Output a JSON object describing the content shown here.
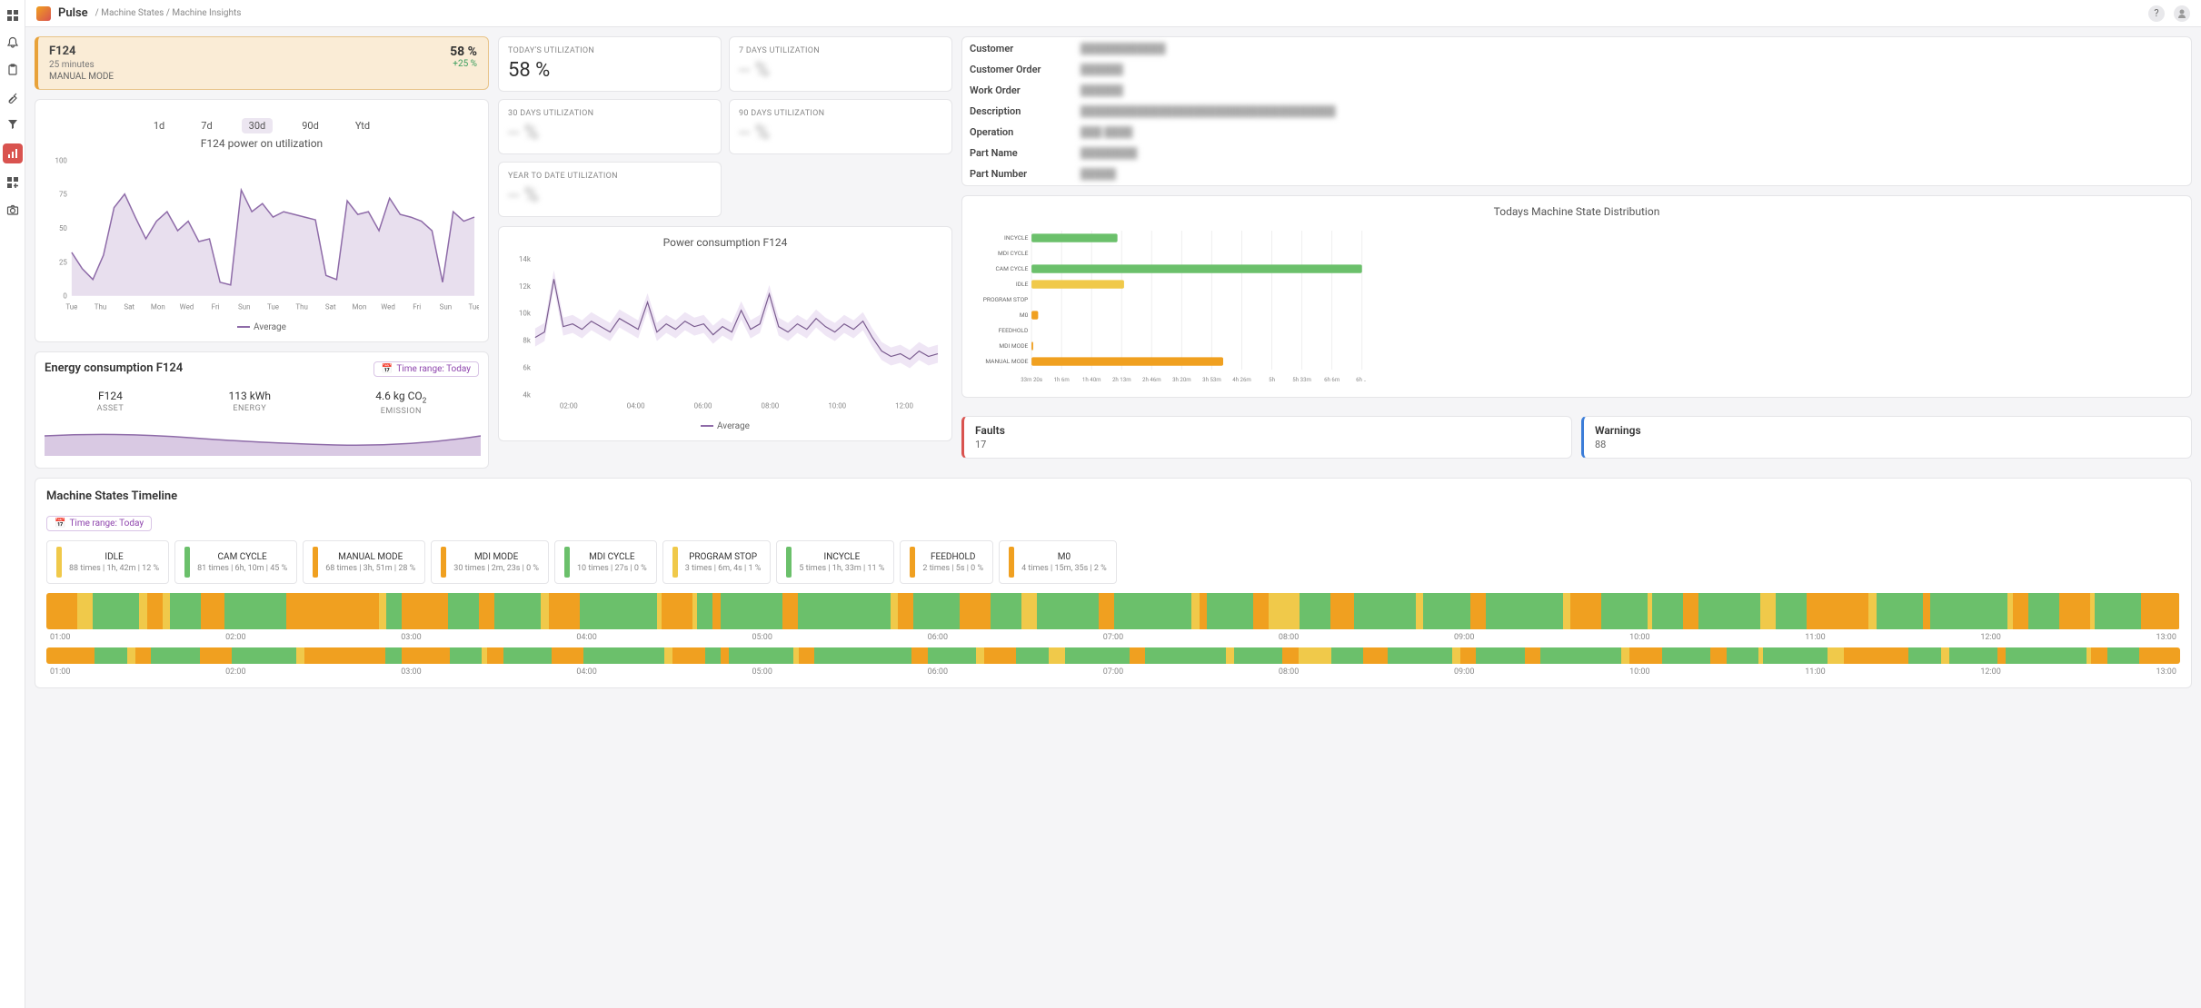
{
  "brand": "Pulse",
  "breadcrumb": [
    "Machine States",
    "Machine Insights"
  ],
  "machine": {
    "name": "F124",
    "subtitle": "25 minutes",
    "mode": "MANUAL MODE",
    "percent": "58 %",
    "delta": "+25 %"
  },
  "range_tabs": [
    "1d",
    "7d",
    "30d",
    "90d",
    "Ytd"
  ],
  "range_active": "30d",
  "utilization_chart": {
    "title": "F124 power on utilization",
    "legend": "Average",
    "ylim": [
      0,
      100
    ],
    "yticks": [
      0,
      25,
      50,
      75,
      100
    ],
    "xlabels": [
      "Tue",
      "Thu",
      "Sat",
      "Mon",
      "Wed",
      "Fri",
      "Sun",
      "Tue",
      "Thu",
      "Sat",
      "Mon",
      "Wed",
      "Fri",
      "Sun",
      "Tue"
    ],
    "values": [
      32,
      20,
      12,
      30,
      65,
      75,
      58,
      42,
      55,
      62,
      48,
      55,
      40,
      42,
      10,
      8,
      78,
      62,
      68,
      58,
      62,
      60,
      58,
      56,
      15,
      12,
      70,
      60,
      62,
      48,
      72,
      60,
      58,
      55,
      48,
      10,
      62,
      55,
      58
    ],
    "line_color": "#8e6ba8",
    "fill_color": "#d9c9e3",
    "bg": "#ffffff"
  },
  "energy": {
    "title": "Energy consumption F124",
    "time_range_label": "Time range: Today",
    "metrics": [
      {
        "val": "F124",
        "lbl": "ASSET"
      },
      {
        "val": "113 kWh",
        "lbl": "ENERGY"
      },
      {
        "val_html": "4.6 kg CO",
        "sub": "2",
        "lbl": "EMISSION"
      }
    ],
    "wave_color": "#b89acc"
  },
  "util_cards": [
    {
      "lbl": "TODAY'S UTILIZATION",
      "val": "58 %",
      "blur": false
    },
    {
      "lbl": "7 DAYS UTILIZATION",
      "val": "-- %",
      "blur": true
    },
    {
      "lbl": "30 DAYS UTILIZATION",
      "val": "-- %",
      "blur": true
    },
    {
      "lbl": "90 DAYS UTILIZATION",
      "val": "-- %",
      "blur": true
    },
    {
      "lbl": "YEAR TO DATE UTILIZATION",
      "val": "-- %",
      "blur": true
    }
  ],
  "power_chart": {
    "title": "Power consumption F124",
    "legend": "Average",
    "ylim": [
      4000,
      14000
    ],
    "yticks": [
      "4k",
      "6k",
      "8k",
      "10k",
      "12k",
      "14k"
    ],
    "xlabels": [
      "02:00",
      "04:00",
      "06:00",
      "08:00",
      "10:00",
      "12:00"
    ],
    "line_color": "#7a5c8f",
    "band_color": "#e4d6ee",
    "values": [
      8200,
      8600,
      12500,
      9000,
      9200,
      8800,
      9400,
      9000,
      8600,
      9600,
      9200,
      8800,
      10800,
      8600,
      9200,
      8800,
      9400,
      9000,
      9200,
      8400,
      9000,
      8600,
      10200,
      8800,
      9200,
      11400,
      9000,
      8600,
      9200,
      8800,
      9600,
      9000,
      8600,
      9200,
      8800,
      9400,
      8200,
      7200,
      6800,
      7000,
      6600,
      7200,
      6800,
      7000
    ]
  },
  "info": [
    {
      "k": "Customer",
      "v": "████████████"
    },
    {
      "k": "Customer Order",
      "v": "██████"
    },
    {
      "k": "Work Order",
      "v": "██████"
    },
    {
      "k": "Description",
      "v": "████████████████████████████████████"
    },
    {
      "k": "Operation",
      "v": "███ ████"
    },
    {
      "k": "Part Name",
      "v": "████████"
    },
    {
      "k": "Part Number",
      "v": "█████"
    }
  ],
  "distribution": {
    "title": "Todays Machine State Distribution",
    "categories": [
      "INCYCLE",
      "MDI CYCLE",
      "CAM CYCLE",
      "IDLE",
      "PROGRAM STOP",
      "M0",
      "FEEDHOLD",
      "MDI MODE",
      "MANUAL MODE"
    ],
    "values": [
      26,
      0,
      100,
      28,
      0,
      2,
      0,
      0.5,
      58
    ],
    "colors": [
      "#6bc06b",
      "#6bc06b",
      "#6bc06b",
      "#f0c94a",
      "#f0c94a",
      "#f0a020",
      "#f0a020",
      "#f0a020",
      "#f0a020"
    ],
    "xlabels": [
      "33m 20s",
      "1h 6m",
      "1h 40m",
      "2h 13m",
      "2h 46m",
      "3h 20m",
      "3h 53m",
      "4h 26m",
      "5h",
      "5h 33m",
      "6h 6m",
      "6h ..."
    ]
  },
  "faults": {
    "label": "Faults",
    "count": "17"
  },
  "warnings": {
    "label": "Warnings",
    "count": "88"
  },
  "timeline": {
    "title": "Machine States Timeline",
    "time_range_label": "Time range: Today",
    "states": [
      {
        "name": "IDLE",
        "color": "#f0c94a",
        "stats": "88 times | 1h, 42m | 12 %"
      },
      {
        "name": "CAM CYCLE",
        "color": "#6bc06b",
        "stats": "81 times | 6h, 10m | 45 %"
      },
      {
        "name": "MANUAL MODE",
        "color": "#f0a020",
        "stats": "68 times | 3h, 51m | 28 %"
      },
      {
        "name": "MDI MODE",
        "color": "#f0a020",
        "stats": "30 times | 2m, 23s | 0 %"
      },
      {
        "name": "MDI CYCLE",
        "color": "#6bc06b",
        "stats": "10 times | 27s | 0 %"
      },
      {
        "name": "PROGRAM STOP",
        "color": "#f0c94a",
        "stats": "3 times | 6m, 4s | 1 %"
      },
      {
        "name": "INCYCLE",
        "color": "#6bc06b",
        "stats": "5 times | 1h, 33m | 11 %"
      },
      {
        "name": "FEEDHOLD",
        "color": "#f0a020",
        "stats": "2 times | 5s | 0 %"
      },
      {
        "name": "M0",
        "color": "#f0a020",
        "stats": "4 times | 15m, 35s | 2 %"
      }
    ],
    "xlabels": [
      "01:00",
      "02:00",
      "03:00",
      "04:00",
      "05:00",
      "06:00",
      "07:00",
      "08:00",
      "09:00",
      "10:00",
      "11:00",
      "12:00",
      "13:00"
    ],
    "segments1": [
      {
        "c": "#f0a020",
        "w": 2
      },
      {
        "c": "#f0c94a",
        "w": 1
      },
      {
        "c": "#6bc06b",
        "w": 3
      },
      {
        "c": "#f0c94a",
        "w": 0.5
      },
      {
        "c": "#f0a020",
        "w": 1
      },
      {
        "c": "#f0c94a",
        "w": 0.5
      },
      {
        "c": "#6bc06b",
        "w": 2
      },
      {
        "c": "#f0a020",
        "w": 1.5
      },
      {
        "c": "#6bc06b",
        "w": 4
      },
      {
        "c": "#f0a020",
        "w": 6
      },
      {
        "c": "#f0c94a",
        "w": 0.5
      },
      {
        "c": "#6bc06b",
        "w": 1
      },
      {
        "c": "#f0a020",
        "w": 3
      },
      {
        "c": "#6bc06b",
        "w": 2
      },
      {
        "c": "#f0a020",
        "w": 1
      },
      {
        "c": "#6bc06b",
        "w": 3
      },
      {
        "c": "#f0c94a",
        "w": 0.5
      },
      {
        "c": "#f0a020",
        "w": 2
      },
      {
        "c": "#6bc06b",
        "w": 5
      },
      {
        "c": "#f0c94a",
        "w": 0.3
      },
      {
        "c": "#f0a020",
        "w": 2
      },
      {
        "c": "#f0c94a",
        "w": 0.3
      },
      {
        "c": "#6bc06b",
        "w": 1
      },
      {
        "c": "#f0a020",
        "w": 0.5
      },
      {
        "c": "#6bc06b",
        "w": 4
      },
      {
        "c": "#f0a020",
        "w": 1
      },
      {
        "c": "#6bc06b",
        "w": 6
      },
      {
        "c": "#f0c94a",
        "w": 0.5
      },
      {
        "c": "#f0a020",
        "w": 1
      },
      {
        "c": "#6bc06b",
        "w": 3
      },
      {
        "c": "#f0a020",
        "w": 2
      },
      {
        "c": "#6bc06b",
        "w": 2
      },
      {
        "c": "#f0c94a",
        "w": 1
      },
      {
        "c": "#6bc06b",
        "w": 4
      },
      {
        "c": "#f0a020",
        "w": 1
      },
      {
        "c": "#6bc06b",
        "w": 5
      },
      {
        "c": "#f0c94a",
        "w": 0.5
      },
      {
        "c": "#f0a020",
        "w": 0.5
      },
      {
        "c": "#6bc06b",
        "w": 3
      },
      {
        "c": "#f0a020",
        "w": 1
      },
      {
        "c": "#f0c94a",
        "w": 2
      },
      {
        "c": "#6bc06b",
        "w": 2
      },
      {
        "c": "#f0a020",
        "w": 1.5
      },
      {
        "c": "#6bc06b",
        "w": 4
      },
      {
        "c": "#f0c94a",
        "w": 0.5
      },
      {
        "c": "#6bc06b",
        "w": 3
      },
      {
        "c": "#f0a020",
        "w": 1
      },
      {
        "c": "#6bc06b",
        "w": 5
      },
      {
        "c": "#f0c94a",
        "w": 0.5
      },
      {
        "c": "#f0a020",
        "w": 2
      },
      {
        "c": "#6bc06b",
        "w": 3
      },
      {
        "c": "#f0c94a",
        "w": 0.3
      },
      {
        "c": "#6bc06b",
        "w": 2
      },
      {
        "c": "#f0a020",
        "w": 1
      },
      {
        "c": "#6bc06b",
        "w": 4
      },
      {
        "c": "#f0c94a",
        "w": 1
      },
      {
        "c": "#6bc06b",
        "w": 2
      },
      {
        "c": "#f0a020",
        "w": 4
      },
      {
        "c": "#f0c94a",
        "w": 0.5
      },
      {
        "c": "#6bc06b",
        "w": 3
      },
      {
        "c": "#f0a020",
        "w": 0.5
      },
      {
        "c": "#6bc06b",
        "w": 5
      },
      {
        "c": "#f0c94a",
        "w": 0.3
      },
      {
        "c": "#f0a020",
        "w": 1
      },
      {
        "c": "#6bc06b",
        "w": 2
      },
      {
        "c": "#f0a020",
        "w": 2
      },
      {
        "c": "#f0c94a",
        "w": 0.3
      },
      {
        "c": "#6bc06b",
        "w": 3
      },
      {
        "c": "#f0a020",
        "w": 2.5
      }
    ],
    "segments2": [
      {
        "c": "#f0a020",
        "w": 3
      },
      {
        "c": "#6bc06b",
        "w": 2
      },
      {
        "c": "#f0c94a",
        "w": 0.5
      },
      {
        "c": "#f0a020",
        "w": 1
      },
      {
        "c": "#6bc06b",
        "w": 3
      },
      {
        "c": "#f0a020",
        "w": 2
      },
      {
        "c": "#6bc06b",
        "w": 4
      },
      {
        "c": "#f0c94a",
        "w": 0.5
      },
      {
        "c": "#f0a020",
        "w": 5
      },
      {
        "c": "#6bc06b",
        "w": 1
      },
      {
        "c": "#f0a020",
        "w": 3
      },
      {
        "c": "#6bc06b",
        "w": 2
      },
      {
        "c": "#f0c94a",
        "w": 0.3
      },
      {
        "c": "#f0a020",
        "w": 1
      },
      {
        "c": "#6bc06b",
        "w": 3
      },
      {
        "c": "#f0a020",
        "w": 2
      },
      {
        "c": "#6bc06b",
        "w": 5
      },
      {
        "c": "#f0c94a",
        "w": 0.5
      },
      {
        "c": "#f0a020",
        "w": 2
      },
      {
        "c": "#6bc06b",
        "w": 1
      },
      {
        "c": "#f0a020",
        "w": 0.5
      },
      {
        "c": "#6bc06b",
        "w": 4
      },
      {
        "c": "#f0c94a",
        "w": 0.3
      },
      {
        "c": "#f0a020",
        "w": 1
      },
      {
        "c": "#6bc06b",
        "w": 6
      },
      {
        "c": "#f0a020",
        "w": 1
      },
      {
        "c": "#6bc06b",
        "w": 3
      },
      {
        "c": "#f0c94a",
        "w": 0.5
      },
      {
        "c": "#f0a020",
        "w": 2
      },
      {
        "c": "#6bc06b",
        "w": 2
      },
      {
        "c": "#f0c94a",
        "w": 1
      },
      {
        "c": "#6bc06b",
        "w": 4
      },
      {
        "c": "#f0a020",
        "w": 1
      },
      {
        "c": "#6bc06b",
        "w": 5
      },
      {
        "c": "#f0c94a",
        "w": 0.5
      },
      {
        "c": "#6bc06b",
        "w": 3
      },
      {
        "c": "#f0a020",
        "w": 1
      },
      {
        "c": "#f0c94a",
        "w": 2
      },
      {
        "c": "#6bc06b",
        "w": 2
      },
      {
        "c": "#f0a020",
        "w": 1.5
      },
      {
        "c": "#6bc06b",
        "w": 4
      },
      {
        "c": "#f0c94a",
        "w": 0.5
      },
      {
        "c": "#f0a020",
        "w": 1
      },
      {
        "c": "#6bc06b",
        "w": 3
      },
      {
        "c": "#f0a020",
        "w": 1
      },
      {
        "c": "#6bc06b",
        "w": 5
      },
      {
        "c": "#f0c94a",
        "w": 0.5
      },
      {
        "c": "#f0a020",
        "w": 2
      },
      {
        "c": "#6bc06b",
        "w": 3
      },
      {
        "c": "#f0a020",
        "w": 1
      },
      {
        "c": "#6bc06b",
        "w": 2
      },
      {
        "c": "#f0c94a",
        "w": 0.3
      },
      {
        "c": "#6bc06b",
        "w": 4
      },
      {
        "c": "#f0c94a",
        "w": 1
      },
      {
        "c": "#f0a020",
        "w": 4
      },
      {
        "c": "#6bc06b",
        "w": 2
      },
      {
        "c": "#f0c94a",
        "w": 0.5
      },
      {
        "c": "#6bc06b",
        "w": 3
      },
      {
        "c": "#f0a020",
        "w": 0.5
      },
      {
        "c": "#6bc06b",
        "w": 5
      },
      {
        "c": "#f0c94a",
        "w": 0.3
      },
      {
        "c": "#f0a020",
        "w": 1
      },
      {
        "c": "#6bc06b",
        "w": 2
      },
      {
        "c": "#f0a020",
        "w": 2.5
      }
    ]
  }
}
